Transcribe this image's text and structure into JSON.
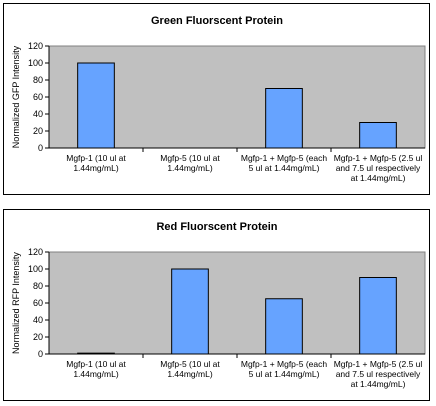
{
  "chart_data": [
    {
      "type": "bar",
      "title": "Green Fluorscent Protein",
      "ylabel": "Normalized GFP Intensity",
      "xlabel": "",
      "ylim": [
        0,
        120
      ],
      "yticks": [
        0,
        20,
        40,
        60,
        80,
        100,
        120
      ],
      "categories": [
        [
          "Mgfp-1 (10 ul at",
          "1.44mg/mL)"
        ],
        [
          "Mgfp-5 (10 ul at",
          "1.44mg/mL)"
        ],
        [
          "Mgfp-1 + Mgfp-5 (each",
          "5 ul at 1.44mg/mL)"
        ],
        [
          "Mgfp-1 + Mgfp-5 (2.5 ul",
          "and 7.5 ul respectively",
          "at 1.44mg/mL)"
        ]
      ],
      "values": [
        100,
        0,
        70,
        30
      ],
      "bar_color": "#66a3ff",
      "plot_bg": "#c0c0c0",
      "grid": false,
      "legend": "none"
    },
    {
      "type": "bar",
      "title": "Red Fluorscent Protein",
      "ylabel": "Normalized RFP Intensity",
      "xlabel": "",
      "ylim": [
        0,
        120
      ],
      "yticks": [
        0,
        20,
        40,
        60,
        80,
        100,
        120
      ],
      "categories": [
        [
          "Mgfp-1 (10 ul at",
          "1.44mg/mL)"
        ],
        [
          "Mgfp-5 (10 ul at",
          "1.44mg/mL)"
        ],
        [
          "Mgfp-1 + Mgfp-5 (each",
          "5 ul at 1.44mg/mL)"
        ],
        [
          "Mgfp-1 + Mgfp-5 (2.5 ul",
          "and 7.5 ul respectively",
          "at 1.44mg/mL)"
        ]
      ],
      "values": [
        1,
        100,
        65,
        90
      ],
      "bar_color": "#66a3ff",
      "plot_bg": "#c0c0c0",
      "grid": false,
      "legend": "none"
    }
  ]
}
